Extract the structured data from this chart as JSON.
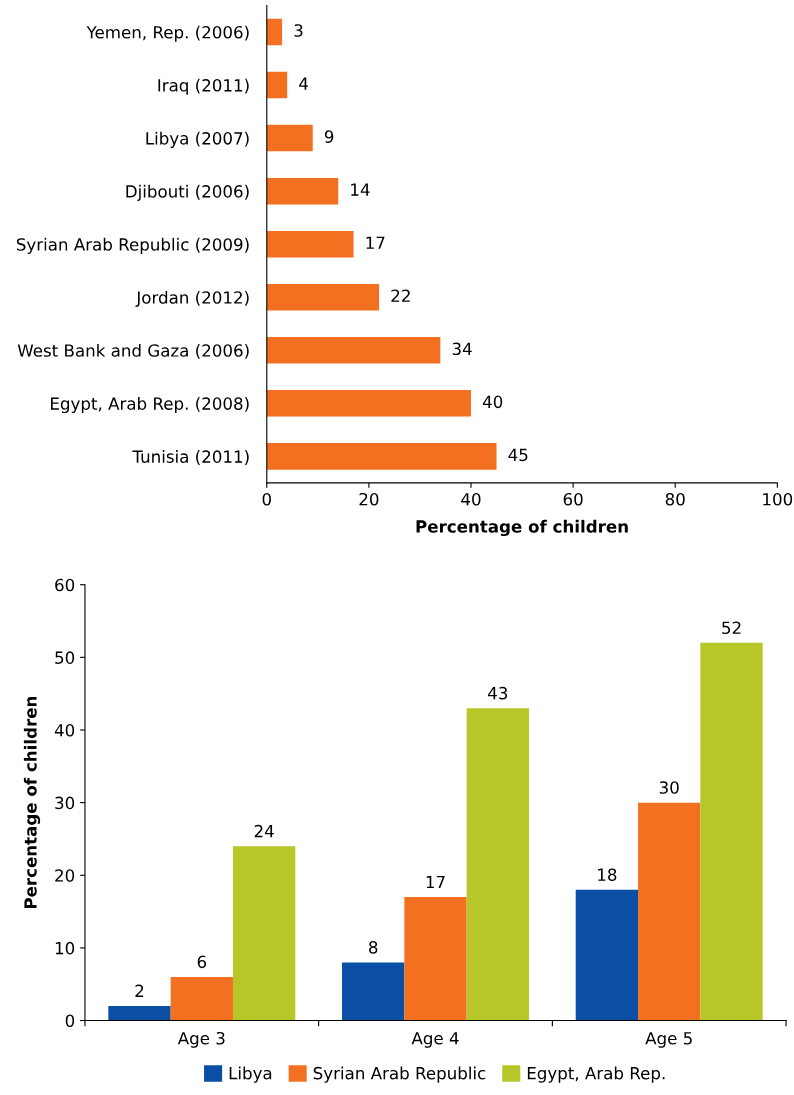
{
  "chart_data": [
    {
      "type": "bar",
      "orientation": "horizontal",
      "categories": [
        "Yemen, Rep. (2006)",
        "Iraq (2011)",
        "Libya (2007)",
        "Djibouti (2006)",
        "Syrian Arab Republic (2009)",
        "Jordan (2012)",
        "West Bank and Gaza (2006)",
        "Egypt, Arab Rep. (2008)",
        "Tunisia (2011)"
      ],
      "values": [
        3,
        4,
        9,
        14,
        17,
        22,
        34,
        40,
        45
      ],
      "color": "#f37021",
      "xlim": [
        0,
        100
      ],
      "xticks": [
        0,
        20,
        40,
        60,
        80,
        100
      ],
      "xlabel": "Percentage of children",
      "data_labels": true,
      "grid": false,
      "legend": false
    },
    {
      "type": "bar",
      "categories": [
        "Age 3",
        "Age 4",
        "Age 5"
      ],
      "series": [
        {
          "name": "Libya",
          "color": "#0a4fa3",
          "values": [
            2,
            8,
            18
          ]
        },
        {
          "name": "Syrian Arab Republic",
          "color": "#f37021",
          "values": [
            6,
            17,
            30
          ]
        },
        {
          "name": "Egypt, Arab Rep.",
          "color": "#b7c72a",
          "values": [
            24,
            43,
            52
          ]
        }
      ],
      "ylim": [
        0,
        60
      ],
      "yticks": [
        0,
        10,
        20,
        30,
        40,
        50,
        60
      ],
      "ylabel": "Percentage of children",
      "data_labels": true,
      "grid": false,
      "legend": "bottom"
    }
  ]
}
